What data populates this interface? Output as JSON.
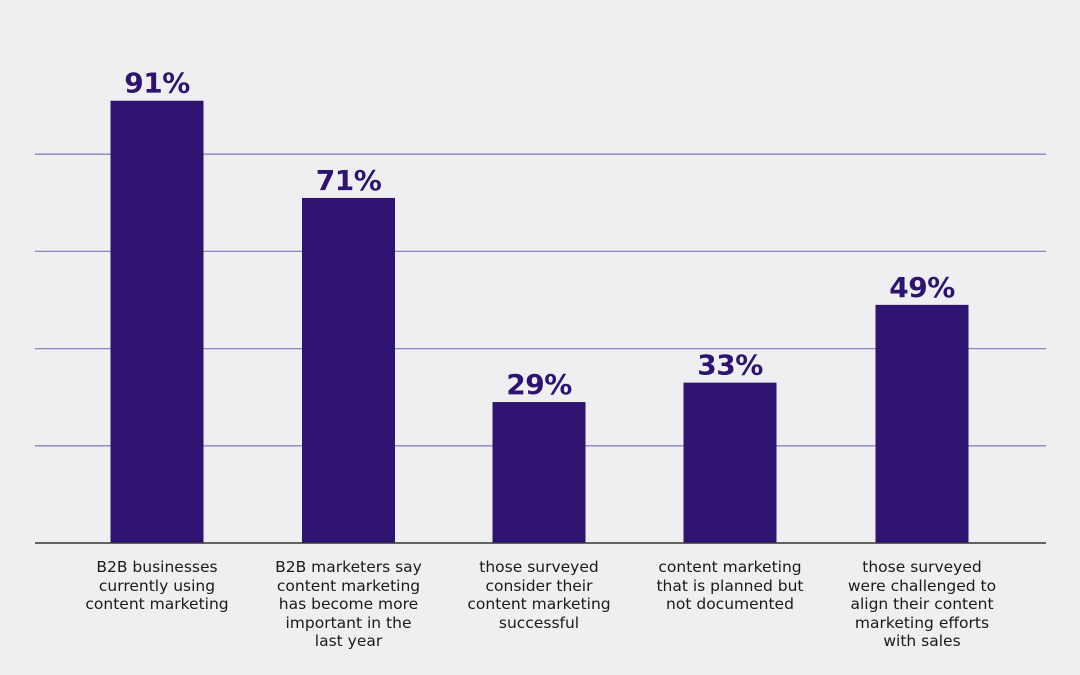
{
  "colors": {
    "background": "#efeff1",
    "bar": "#2e1470",
    "value_text": "#2e1470",
    "gridline": "#8b82c4",
    "axis": "#333333",
    "label_text": "#1a1a1a"
  },
  "chart_data": {
    "type": "bar",
    "title": "",
    "xlabel": "",
    "ylabel": "",
    "ylim": [
      0,
      100
    ],
    "grid": true,
    "categories": [
      "B2B businesses\ncurrently using\ncontent marketing",
      "B2B marketers say\ncontent marketing\nhas become more\nimportant in the\nlast year",
      "those surveyed\nconsider their\ncontent marketing\nsuccessful",
      "content marketing\nthat is planned but\nnot documented",
      "those surveyed\nwere challenged to\nalign their content\nmarketing efforts\nwith sales"
    ],
    "values": [
      91,
      71,
      29,
      33,
      49
    ],
    "value_labels": [
      "91%",
      "71%",
      "29%",
      "33%",
      "49%"
    ]
  }
}
